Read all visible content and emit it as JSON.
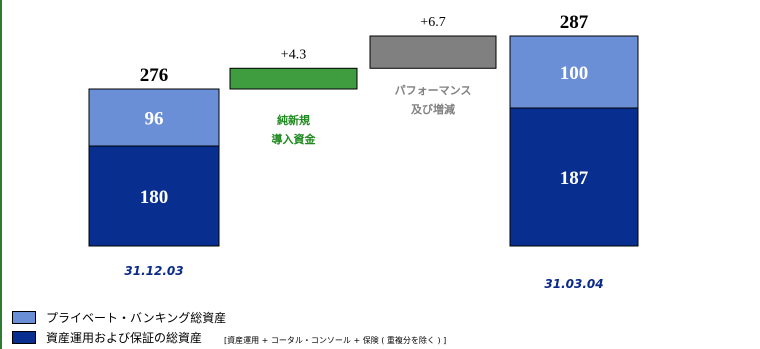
{
  "chart_data": {
    "type": "bar",
    "subtype": "waterfall",
    "ylim": [
      0,
      300
    ],
    "colors": {
      "private_banking": "#6b8fd6",
      "asset_management": "#082f8f",
      "net_new_money": "#3f9c3f",
      "performance": "#808080",
      "net_new_money_label": "#1f8a1f",
      "performance_label": "#808080"
    },
    "bars": [
      {
        "kind": "stacked",
        "date": "31.12.03",
        "total": "276",
        "segments": [
          {
            "series": "asset_management",
            "value": 180,
            "label": "180"
          },
          {
            "series": "private_banking",
            "value": 96,
            "label": "96"
          }
        ]
      },
      {
        "kind": "float",
        "series": "net_new_money",
        "base": 276,
        "value": 4.3,
        "label": "+4.3",
        "caption": [
          "純新規",
          "導入資金"
        ]
      },
      {
        "kind": "float",
        "series": "performance",
        "base": 280.3,
        "value": 6.7,
        "label": "+6.7",
        "caption": [
          "パフォーマンス",
          "及び増減"
        ]
      },
      {
        "kind": "stacked",
        "date": "31.03.04",
        "total": "287",
        "segments": [
          {
            "series": "asset_management",
            "value": 187,
            "label": "187"
          },
          {
            "series": "private_banking",
            "value": 100,
            "label": "100"
          }
        ]
      }
    ],
    "legend": [
      {
        "series": "private_banking",
        "label": "プライベート・バンキング総資産"
      },
      {
        "series": "asset_management",
        "label": "資産運用および保証の総資産",
        "note": "[資産運用 + コータル・コンソール + 保険 ( 重複分を除く ) ]"
      }
    ]
  }
}
